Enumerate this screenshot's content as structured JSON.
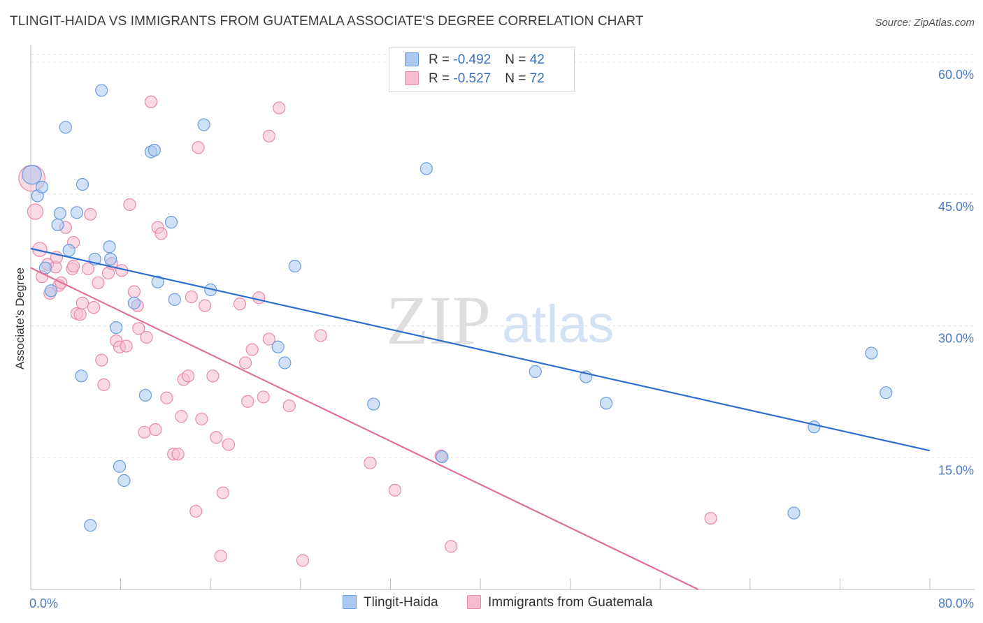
{
  "title": "TLINGIT-HAIDA VS IMMIGRANTS FROM GUATEMALA ASSOCIATE'S DEGREE CORRELATION CHART",
  "source": "Source: ZipAtlas.com",
  "watermark": {
    "zip": "ZIP",
    "atlas": "atlas"
  },
  "legend_top": [
    {
      "r_label": "R = ",
      "r_value": "-0.492",
      "n_label": "N = ",
      "n_value": "42"
    },
    {
      "r_label": "R = ",
      "r_value": "-0.527",
      "n_label": "N = ",
      "n_value": "72"
    }
  ],
  "colors": {
    "blue_fill": "#aac8f0",
    "blue_stroke": "#6a9de0",
    "blue_line": "#2f6fcc",
    "pink_fill": "#f6bcd0",
    "pink_stroke": "#e88aaa",
    "pink_line": "#e0709a",
    "grid": "#e2e2e2",
    "tick_text": "#4a7cc4"
  },
  "chart_data": {
    "type": "scatter",
    "title": "TLINGIT-HAIDA VS IMMIGRANTS FROM GUATEMALA ASSOCIATE'S DEGREE CORRELATION CHART",
    "xlabel": "",
    "ylabel": "Associate's Degree",
    "xlim": [
      0,
      80
    ],
    "ylim": [
      0,
      62
    ],
    "x_tick_labels": [
      "0.0%",
      "80.0%"
    ],
    "y_ticks": [
      15,
      30,
      45,
      60
    ],
    "y_tick_labels": [
      "15.0%",
      "30.0%",
      "45.0%",
      "60.0%"
    ],
    "grid": true,
    "legend_position": "bottom",
    "series": [
      {
        "name": "Tlingit-Haida",
        "r": -0.492,
        "n": 42,
        "trend": [
          [
            0,
            38.8
          ],
          [
            80,
            15.8
          ]
        ],
        "points": [
          [
            0.1,
            47.2,
            1.6
          ],
          [
            0.6,
            44.8,
            1
          ],
          [
            1.0,
            45.8,
            1
          ],
          [
            1.3,
            36.6,
            1
          ],
          [
            1.8,
            34.0,
            1
          ],
          [
            2.4,
            41.5,
            1
          ],
          [
            2.6,
            42.8,
            1
          ],
          [
            3.1,
            52.6,
            1
          ],
          [
            3.4,
            38.6,
            1
          ],
          [
            4.1,
            42.9,
            1
          ],
          [
            4.6,
            46.1,
            1
          ],
          [
            4.5,
            24.3,
            1
          ],
          [
            5.3,
            7.3,
            1
          ],
          [
            5.7,
            37.6,
            1
          ],
          [
            6.3,
            56.8,
            1
          ],
          [
            7.0,
            39.0,
            1
          ],
          [
            7.1,
            37.6,
            1
          ],
          [
            7.6,
            29.8,
            1
          ],
          [
            7.9,
            14.0,
            1
          ],
          [
            8.3,
            12.4,
            1
          ],
          [
            9.2,
            32.6,
            1
          ],
          [
            10.2,
            22.1,
            1
          ],
          [
            10.7,
            49.8,
            1
          ],
          [
            11.0,
            50.0,
            1
          ],
          [
            11.3,
            35.0,
            1
          ],
          [
            12.5,
            41.8,
            1
          ],
          [
            12.8,
            33.0,
            1
          ],
          [
            15.4,
            52.9,
            1
          ],
          [
            16.0,
            34.1,
            1
          ],
          [
            22.0,
            27.6,
            1
          ],
          [
            22.6,
            25.8,
            1
          ],
          [
            23.5,
            36.8,
            1
          ],
          [
            30.5,
            21.1,
            1
          ],
          [
            35.2,
            47.9,
            1
          ],
          [
            36.6,
            15.1,
            1
          ],
          [
            44.9,
            24.8,
            1
          ],
          [
            49.4,
            24.2,
            1
          ],
          [
            51.2,
            21.2,
            1
          ],
          [
            67.9,
            8.7,
            1
          ],
          [
            69.7,
            18.5,
            1
          ],
          [
            74.8,
            26.9,
            1
          ],
          [
            76.1,
            22.4,
            1
          ]
        ]
      },
      {
        "name": "Immigrants from Guatemala",
        "r": -0.527,
        "n": 72,
        "trend": [
          [
            0,
            36.6
          ],
          [
            59.4,
            0
          ]
        ],
        "points": [
          [
            0.1,
            46.8,
            2.2
          ],
          [
            0.4,
            43.0,
            1.3
          ],
          [
            0.8,
            38.7,
            1.2
          ],
          [
            1.0,
            35.6,
            1
          ],
          [
            1.5,
            37.0,
            1
          ],
          [
            1.7,
            33.7,
            1
          ],
          [
            2.2,
            36.7,
            1
          ],
          [
            2.3,
            37.8,
            1
          ],
          [
            2.5,
            34.6,
            1
          ],
          [
            2.7,
            34.9,
            1
          ],
          [
            3.1,
            41.2,
            1
          ],
          [
            3.7,
            36.5,
            1
          ],
          [
            3.8,
            36.8,
            1
          ],
          [
            3.8,
            39.5,
            1
          ],
          [
            4.1,
            31.4,
            1
          ],
          [
            4.4,
            31.3,
            1
          ],
          [
            4.6,
            32.6,
            1
          ],
          [
            5.1,
            36.5,
            1
          ],
          [
            5.3,
            42.7,
            1
          ],
          [
            5.6,
            32.1,
            1
          ],
          [
            6.0,
            34.9,
            1
          ],
          [
            6.3,
            26.1,
            1
          ],
          [
            6.5,
            23.3,
            1
          ],
          [
            6.9,
            36.0,
            1
          ],
          [
            7.2,
            37.1,
            1
          ],
          [
            7.6,
            28.3,
            1
          ],
          [
            7.9,
            27.6,
            1
          ],
          [
            8.1,
            36.3,
            1
          ],
          [
            8.5,
            27.7,
            1
          ],
          [
            8.8,
            43.8,
            1
          ],
          [
            9.2,
            33.9,
            1
          ],
          [
            9.5,
            32.3,
            1
          ],
          [
            9.6,
            29.7,
            1
          ],
          [
            10.1,
            17.9,
            1
          ],
          [
            10.3,
            28.7,
            1
          ],
          [
            10.7,
            55.5,
            1
          ],
          [
            11.1,
            18.2,
            1
          ],
          [
            11.3,
            41.2,
            1
          ],
          [
            11.6,
            40.5,
            1
          ],
          [
            12.1,
            21.8,
            1
          ],
          [
            12.7,
            15.4,
            1
          ],
          [
            13.1,
            15.4,
            1
          ],
          [
            13.4,
            19.7,
            1
          ],
          [
            13.6,
            23.9,
            1
          ],
          [
            14.0,
            24.3,
            1
          ],
          [
            14.3,
            33.3,
            1
          ],
          [
            14.7,
            8.9,
            1
          ],
          [
            14.9,
            50.3,
            1
          ],
          [
            15.2,
            19.4,
            1
          ],
          [
            15.5,
            32.3,
            1
          ],
          [
            16.2,
            24.3,
            1
          ],
          [
            16.5,
            17.3,
            1
          ],
          [
            16.9,
            3.8,
            1
          ],
          [
            17.1,
            11.0,
            1
          ],
          [
            17.6,
            16.5,
            1
          ],
          [
            18.6,
            32.5,
            1
          ],
          [
            19.1,
            25.8,
            1
          ],
          [
            19.3,
            21.4,
            1
          ],
          [
            19.7,
            27.3,
            1
          ],
          [
            20.3,
            33.2,
            1
          ],
          [
            20.7,
            21.9,
            1
          ],
          [
            21.2,
            28.5,
            1
          ],
          [
            21.2,
            51.6,
            1
          ],
          [
            22.1,
            54.8,
            1
          ],
          [
            23.0,
            20.9,
            1
          ],
          [
            24.2,
            3.3,
            1
          ],
          [
            25.8,
            28.9,
            1
          ],
          [
            30.2,
            14.4,
            1
          ],
          [
            32.4,
            11.3,
            1
          ],
          [
            36.5,
            15.2,
            1
          ],
          [
            37.4,
            4.9,
            1
          ],
          [
            60.5,
            8.1,
            1
          ]
        ]
      }
    ]
  }
}
